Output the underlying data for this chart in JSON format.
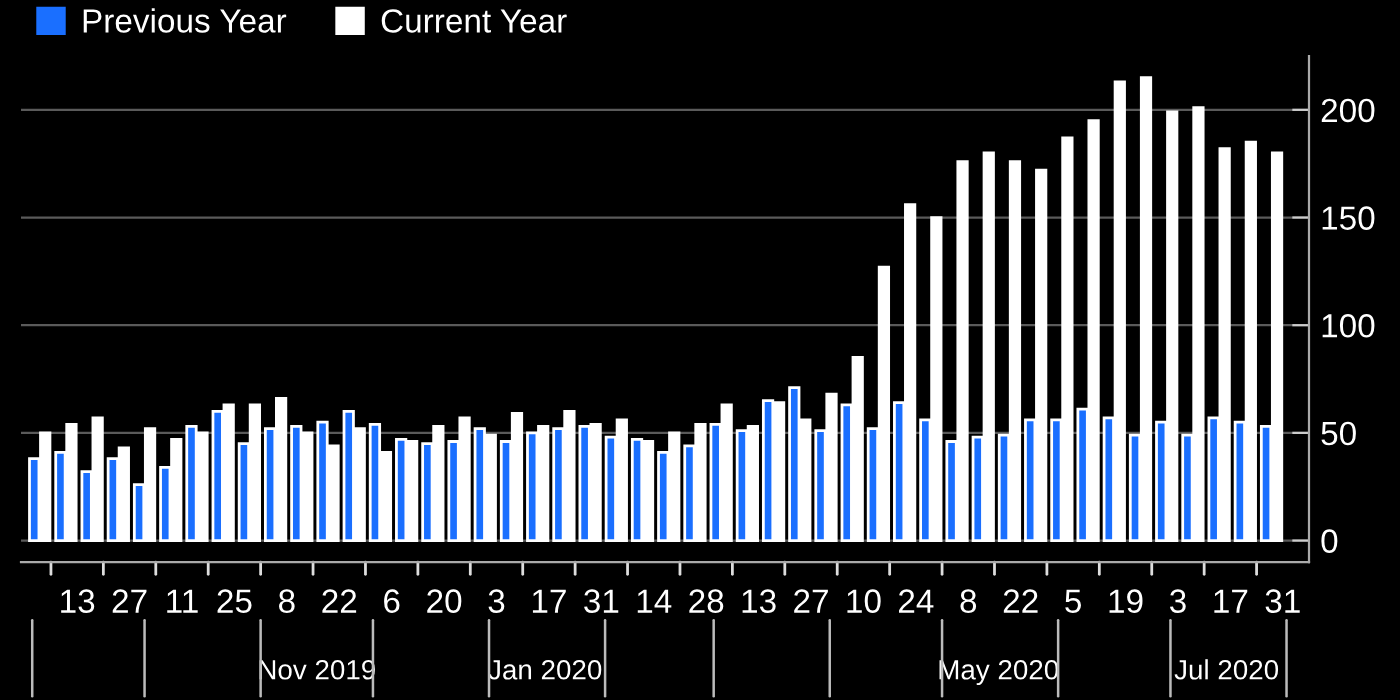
{
  "chart_data": {
    "type": "bar",
    "legend": "top left",
    "grid": "y",
    "x": [
      "2019-09-03",
      "2019-09-10",
      "2019-09-17",
      "2019-09-24",
      "2019-10-01",
      "2019-10-08",
      "2019-10-15",
      "2019-10-22",
      "2019-10-29",
      "2019-11-05",
      "2019-11-12",
      "2019-11-19",
      "2019-11-26",
      "2019-12-03",
      "2019-12-10",
      "2019-12-17",
      "2019-12-24",
      "2019-12-31",
      "2020-01-07",
      "2020-01-14",
      "2020-01-21",
      "2020-01-28",
      "2020-02-04",
      "2020-02-11",
      "2020-02-18",
      "2020-02-25",
      "2020-03-03",
      "2020-03-10",
      "2020-03-17",
      "2020-03-24",
      "2020-03-31",
      "2020-04-07",
      "2020-04-14",
      "2020-04-21",
      "2020-04-28",
      "2020-05-05",
      "2020-05-12",
      "2020-05-19",
      "2020-05-26",
      "2020-06-02",
      "2020-06-09",
      "2020-06-16",
      "2020-06-23",
      "2020-06-30",
      "2020-07-07",
      "2020-07-14",
      "2020-07-21",
      "2020-07-28"
    ],
    "series": [
      {
        "name": "Previous Year",
        "color": "#1a6fff",
        "values": [
          38,
          41,
          32,
          38,
          26,
          34,
          53,
          60,
          45,
          52,
          53,
          55,
          60,
          54,
          47,
          45,
          46,
          52,
          46,
          50,
          52,
          53,
          48,
          47,
          41,
          44,
          54,
          51,
          65,
          71,
          51,
          63,
          52,
          64,
          56,
          46,
          48,
          49,
          56,
          56,
          61,
          57,
          49,
          55,
          49,
          57,
          55,
          53
        ]
      },
      {
        "name": "Current Year",
        "color": "#ffffff",
        "values": [
          50,
          54,
          57,
          43,
          52,
          47,
          50,
          63,
          63,
          66,
          50,
          44,
          52,
          41,
          46,
          53,
          57,
          49,
          59,
          53,
          60,
          54,
          56,
          46,
          50,
          54,
          63,
          53,
          64,
          56,
          68,
          85,
          127,
          156,
          150,
          176,
          180,
          176,
          172,
          187,
          195,
          213,
          215,
          199,
          201,
          182,
          185,
          180
        ]
      }
    ],
    "xlim": [
      "2019-08-29",
      "2020-08-07"
    ],
    "xticks": [
      {
        "value": "2019-09-06",
        "label": null
      },
      {
        "value": "2019-09-13",
        "label": "13"
      },
      {
        "value": "2019-09-20",
        "label": null
      },
      {
        "value": "2019-09-27",
        "label": "27"
      },
      {
        "value": "2019-10-04",
        "label": null
      },
      {
        "value": "2019-10-11",
        "label": "11"
      },
      {
        "value": "2019-10-18",
        "label": null
      },
      {
        "value": "2019-10-25",
        "label": "25"
      },
      {
        "value": "2019-11-01",
        "label": null
      },
      {
        "value": "2019-11-08",
        "label": "8"
      },
      {
        "value": "2019-11-15",
        "label": null
      },
      {
        "value": "2019-11-22",
        "label": "22"
      },
      {
        "value": "2019-11-29",
        "label": null
      },
      {
        "value": "2019-12-06",
        "label": "6"
      },
      {
        "value": "2019-12-13",
        "label": null
      },
      {
        "value": "2019-12-20",
        "label": "20"
      },
      {
        "value": "2019-12-27",
        "label": null
      },
      {
        "value": "2020-01-03",
        "label": "3"
      },
      {
        "value": "2020-01-10",
        "label": null
      },
      {
        "value": "2020-01-17",
        "label": "17"
      },
      {
        "value": "2020-01-24",
        "label": null
      },
      {
        "value": "2020-01-31",
        "label": "31"
      },
      {
        "value": "2020-02-07",
        "label": null
      },
      {
        "value": "2020-02-14",
        "label": "14"
      },
      {
        "value": "2020-02-21",
        "label": null
      },
      {
        "value": "2020-02-28",
        "label": "28"
      },
      {
        "value": "2020-03-06",
        "label": null
      },
      {
        "value": "2020-03-13",
        "label": "13"
      },
      {
        "value": "2020-03-20",
        "label": null
      },
      {
        "value": "2020-03-27",
        "label": "27"
      },
      {
        "value": "2020-04-03",
        "label": null
      },
      {
        "value": "2020-04-10",
        "label": "10"
      },
      {
        "value": "2020-04-17",
        "label": null
      },
      {
        "value": "2020-04-24",
        "label": "24"
      },
      {
        "value": "2020-05-01",
        "label": null
      },
      {
        "value": "2020-05-08",
        "label": "8"
      },
      {
        "value": "2020-05-15",
        "label": null
      },
      {
        "value": "2020-05-22",
        "label": "22"
      },
      {
        "value": "2020-05-29",
        "label": null
      },
      {
        "value": "2020-06-05",
        "label": "5"
      },
      {
        "value": "2020-06-12",
        "label": null
      },
      {
        "value": "2020-06-19",
        "label": "19"
      },
      {
        "value": "2020-06-26",
        "label": null
      },
      {
        "value": "2020-07-03",
        "label": "3"
      },
      {
        "value": "2020-07-10",
        "label": null
      },
      {
        "value": "2020-07-17",
        "label": "17"
      },
      {
        "value": "2020-07-24",
        "label": null
      },
      {
        "value": "2020-07-31",
        "label": "31"
      }
    ],
    "ylim": [
      -10,
      225
    ],
    "yticks": [
      0,
      50,
      100,
      150,
      200
    ],
    "x2lim": [
      "2019-08-29",
      "2020-08-07"
    ],
    "x2ticks": [
      {
        "value": "2019-11-16",
        "label": "Nov 2019"
      },
      {
        "value": "2020-01-16",
        "label": "Jan 2020"
      },
      {
        "value": "2020-05-16",
        "label": "May 2020"
      },
      {
        "value": "2020-07-16",
        "label": "Jul 2020"
      }
    ]
  }
}
